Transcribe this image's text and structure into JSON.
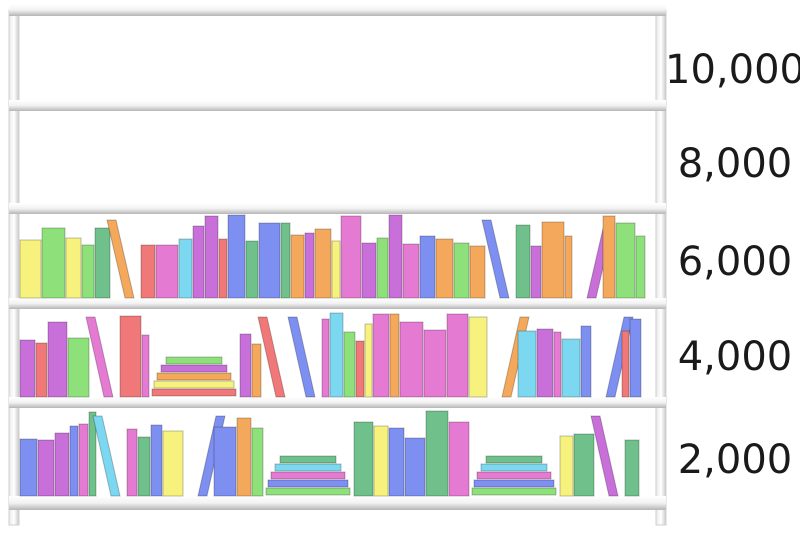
{
  "chart_data": {
    "type": "bar",
    "title": "",
    "xlabel": "",
    "ylabel": "",
    "ylim": [
      0,
      10000
    ],
    "y_ticks": [
      "2,000",
      "4,000",
      "6,000",
      "8,000",
      "10,000"
    ],
    "y_tick_values": [
      2000,
      4000,
      6000,
      8000,
      10000
    ],
    "grid": true,
    "legend": "none",
    "pictogram": "books on a bookshelf; each shelf represents 2,000",
    "series": [
      {
        "values": [
          6000
        ]
      }
    ],
    "book_colors": [
      "#8ee07a",
      "#f07878",
      "#7d8ff0",
      "#f7f27e",
      "#e47ad2",
      "#f4a85c",
      "#7cd8f0",
      "#c86fd9",
      "#6fc08a"
    ]
  }
}
